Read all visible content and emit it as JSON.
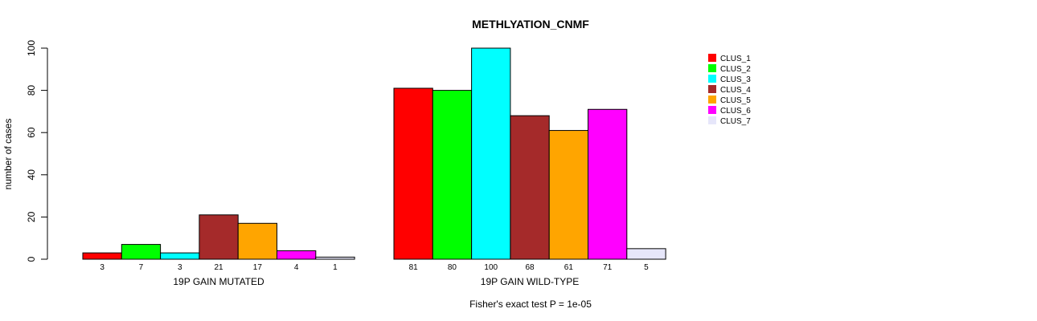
{
  "chart_data": {
    "type": "bar",
    "title": "METHLYATION_CNMF",
    "ylabel": "number of cases",
    "ylim": [
      0,
      100
    ],
    "yticks": [
      "0",
      "20",
      "40",
      "60",
      "80",
      "100"
    ],
    "footnote": "Fisher's exact test P = 1e-05",
    "legend_position": "top-right",
    "series": [
      {
        "name": "CLUS_1",
        "color": "#ff0000"
      },
      {
        "name": "CLUS_2",
        "color": "#00ff00"
      },
      {
        "name": "CLUS_3",
        "color": "#00ffff"
      },
      {
        "name": "CLUS_4",
        "color": "#a52a2a"
      },
      {
        "name": "CLUS_5",
        "color": "#ffa500"
      },
      {
        "name": "CLUS_6",
        "color": "#ff00ff"
      },
      {
        "name": "CLUS_7",
        "color": "#e6e6fa"
      }
    ],
    "groups": [
      {
        "label": "19P GAIN MUTATED",
        "values": [
          3,
          7,
          3,
          21,
          17,
          4,
          1
        ],
        "value_labels": [
          "3",
          "7",
          "3",
          "21",
          "17",
          "4",
          "1"
        ]
      },
      {
        "label": "19P GAIN WILD-TYPE",
        "values": [
          81,
          80,
          100,
          68,
          61,
          71,
          5
        ],
        "value_labels": [
          "81",
          "80",
          "100",
          "68",
          "61",
          "71",
          "5"
        ]
      }
    ]
  }
}
